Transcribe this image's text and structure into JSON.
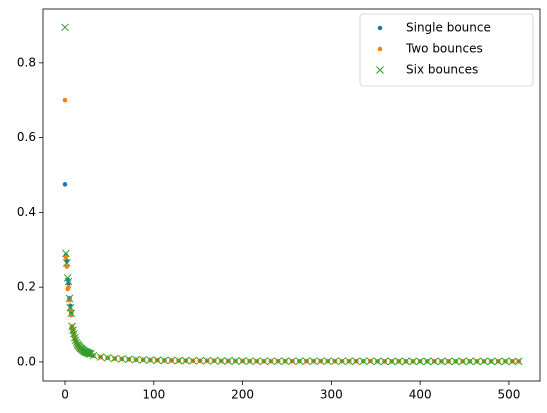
{
  "chart_data": {
    "type": "scatter",
    "x": [
      0,
      1,
      2,
      3,
      4,
      5,
      6,
      7,
      8,
      9,
      10,
      11,
      12,
      13,
      14,
      15,
      16,
      17,
      18,
      19,
      20,
      21,
      22,
      23,
      24,
      25,
      26,
      27,
      28,
      29,
      32,
      40,
      48,
      56,
      64,
      72,
      80,
      88,
      96,
      104,
      112,
      120,
      128,
      136,
      144,
      152,
      160,
      168,
      176,
      184,
      192,
      200,
      208,
      216,
      224,
      232,
      240,
      248,
      256,
      264,
      272,
      280,
      288,
      296,
      304,
      312,
      320,
      328,
      336,
      344,
      352,
      360,
      368,
      376,
      384,
      392,
      400,
      408,
      416,
      424,
      432,
      440,
      448,
      456,
      464,
      472,
      480,
      488,
      496,
      504,
      511
    ],
    "series": [
      {
        "name": "Single bounce",
        "color": "#1f77b4",
        "marker": ".",
        "values": [
          0.475,
          0.285,
          0.27,
          0.22,
          0.21,
          0.17,
          0.15,
          0.13,
          0.09,
          0.08,
          0.07,
          0.06,
          0.055,
          0.05,
          0.045,
          0.042,
          0.039,
          0.036,
          0.034,
          0.032,
          0.03,
          0.028,
          0.027,
          0.025,
          0.024,
          0.023,
          0.022,
          0.021,
          0.02,
          0.019,
          0.017,
          0.013,
          0.011,
          0.009,
          0.008,
          0.007,
          0.006,
          0.0055,
          0.005,
          0.0045,
          0.004,
          0.004,
          0.0035,
          0.0035,
          0.003,
          0.003,
          0.003,
          0.003,
          0.0025,
          0.0025,
          0.0025,
          0.0025,
          0.002,
          0.002,
          0.002,
          0.002,
          0.002,
          0.002,
          0.002,
          0.002,
          0.002,
          0.002,
          0.002,
          0.002,
          0.002,
          0.002,
          0.002,
          0.002,
          0.002,
          0.002,
          0.0015,
          0.0015,
          0.0015,
          0.0015,
          0.0015,
          0.0015,
          0.0015,
          0.0015,
          0.0015,
          0.0015,
          0.0015,
          0.0015,
          0.0015,
          0.0015,
          0.0015,
          0.0015,
          0.0015,
          0.0015,
          0.0015,
          0.0015,
          0.0015
        ]
      },
      {
        "name": "Two bounces",
        "color": "#ff7f0e",
        "marker": ".",
        "values": [
          0.7,
          0.28,
          0.255,
          0.195,
          0.2,
          0.165,
          0.14,
          0.125,
          0.095,
          0.085,
          0.072,
          0.062,
          0.056,
          0.051,
          0.046,
          0.043,
          0.04,
          0.037,
          0.035,
          0.033,
          0.031,
          0.029,
          0.027,
          0.026,
          0.025,
          0.024,
          0.023,
          0.022,
          0.021,
          0.02,
          0.017,
          0.013,
          0.011,
          0.009,
          0.008,
          0.007,
          0.006,
          0.0055,
          0.005,
          0.0045,
          0.004,
          0.004,
          0.0035,
          0.0035,
          0.003,
          0.003,
          0.003,
          0.003,
          0.0025,
          0.0025,
          0.0025,
          0.0025,
          0.002,
          0.002,
          0.002,
          0.002,
          0.002,
          0.002,
          0.002,
          0.002,
          0.002,
          0.002,
          0.002,
          0.002,
          0.002,
          0.002,
          0.002,
          0.002,
          0.002,
          0.002,
          0.0015,
          0.0015,
          0.0015,
          0.0015,
          0.0015,
          0.0015,
          0.0015,
          0.0015,
          0.0015,
          0.0015,
          0.0015,
          0.0015,
          0.0015,
          0.0015,
          0.0015,
          0.0015,
          0.0015,
          0.0015,
          0.0015,
          0.0015,
          0.0015
        ]
      },
      {
        "name": "Six bounces",
        "color": "#2ca02c",
        "marker": "x",
        "values": [
          0.895,
          0.29,
          0.265,
          0.225,
          0.215,
          0.17,
          0.145,
          0.13,
          0.095,
          0.085,
          0.075,
          0.065,
          0.058,
          0.052,
          0.047,
          0.044,
          0.041,
          0.038,
          0.036,
          0.034,
          0.032,
          0.03,
          0.028,
          0.027,
          0.026,
          0.025,
          0.024,
          0.023,
          0.022,
          0.021,
          0.017,
          0.013,
          0.011,
          0.009,
          0.008,
          0.007,
          0.006,
          0.0055,
          0.005,
          0.0045,
          0.004,
          0.004,
          0.0035,
          0.0035,
          0.003,
          0.003,
          0.003,
          0.003,
          0.0025,
          0.0025,
          0.0025,
          0.0025,
          0.002,
          0.002,
          0.002,
          0.002,
          0.002,
          0.002,
          0.002,
          0.002,
          0.002,
          0.002,
          0.002,
          0.002,
          0.002,
          0.002,
          0.002,
          0.002,
          0.002,
          0.002,
          0.0015,
          0.0015,
          0.0015,
          0.0015,
          0.0015,
          0.0015,
          0.0015,
          0.0015,
          0.0015,
          0.0015,
          0.0015,
          0.0015,
          0.0015,
          0.0015,
          0.0015,
          0.0015,
          0.0015,
          0.0015,
          0.0015,
          0.0015,
          0.0015
        ]
      }
    ],
    "xlim": [
      -24.8,
      535
    ],
    "xticks": [
      0,
      100,
      200,
      300,
      400,
      500
    ],
    "ylim": [
      -0.051,
      0.944
    ],
    "yticks": [
      {
        "value": 0,
        "label": "0.0"
      },
      {
        "value": 0.2,
        "label": "0.2"
      },
      {
        "value": 0.4,
        "label": "0.4"
      },
      {
        "value": 0.6,
        "label": "0.6"
      },
      {
        "value": 0.8,
        "label": "0.8"
      }
    ],
    "legend": "upper right"
  }
}
